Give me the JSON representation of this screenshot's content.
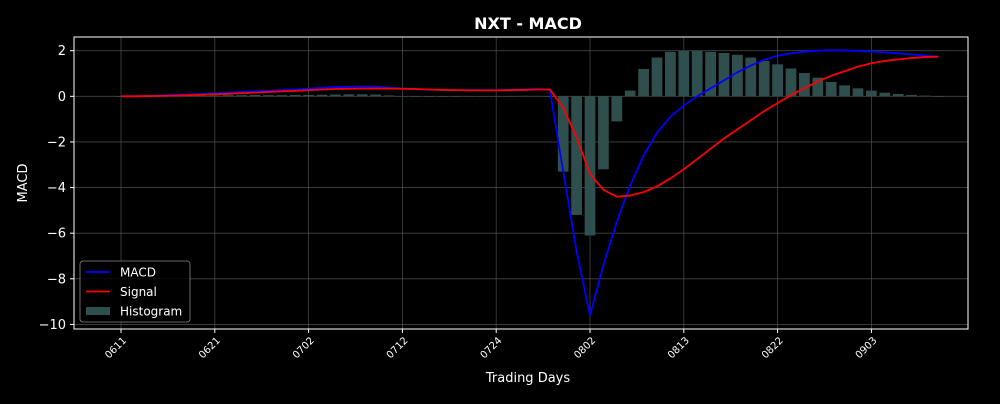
{
  "chart_data": {
    "type": "line",
    "title": "NXT - MACD",
    "xlabel": "Trading Days",
    "ylabel": "MACD",
    "ylim": [
      -10.2,
      2.6
    ],
    "yticks": [
      2,
      0,
      -2,
      -4,
      -6,
      -8,
      -10
    ],
    "ytick_labels": [
      "2",
      "0",
      "−2",
      "−4",
      "−6",
      "−8",
      "−10"
    ],
    "xticks": [
      {
        "label": "0611",
        "index": 0
      },
      {
        "label": "0621",
        "index": 7
      },
      {
        "label": "0702",
        "index": 14
      },
      {
        "label": "0712",
        "index": 21
      },
      {
        "label": "0724",
        "index": 28
      },
      {
        "label": "0802",
        "index": 35
      },
      {
        "label": "0813",
        "index": 42
      },
      {
        "label": "0822",
        "index": 49
      },
      {
        "label": "0903",
        "index": 56
      }
    ],
    "x": [
      0,
      1,
      2,
      3,
      4,
      5,
      6,
      7,
      8,
      9,
      10,
      11,
      12,
      13,
      14,
      15,
      16,
      17,
      18,
      19,
      20,
      21,
      22,
      23,
      24,
      25,
      26,
      27,
      28,
      29,
      30,
      31,
      32,
      33,
      34,
      35,
      36,
      37,
      38,
      39,
      40,
      41,
      42,
      43,
      44,
      45,
      46,
      47,
      48,
      49,
      50,
      51,
      52,
      53,
      54,
      55,
      56,
      57,
      58,
      59,
      60,
      61
    ],
    "grid": true,
    "legend_position": "lower-left",
    "colors": {
      "background": "#000000",
      "axes": "#ffffff",
      "grid": "#555555",
      "macd": "#0000ff",
      "signal": "#ff0000",
      "histogram": "#2f4f4f"
    },
    "series": [
      {
        "name": "MACD",
        "kind": "line",
        "values": [
          0.0,
          0.01,
          0.02,
          0.04,
          0.06,
          0.08,
          0.1,
          0.13,
          0.16,
          0.19,
          0.22,
          0.24,
          0.27,
          0.3,
          0.33,
          0.37,
          0.4,
          0.42,
          0.43,
          0.42,
          0.38,
          0.34,
          0.31,
          0.29,
          0.28,
          0.27,
          0.27,
          0.27,
          0.27,
          0.28,
          0.3,
          0.32,
          0.3,
          -3.3,
          -6.8,
          -9.6,
          -7.4,
          -5.5,
          -3.9,
          -2.6,
          -1.6,
          -0.9,
          -0.4,
          0.0,
          0.35,
          0.7,
          1.05,
          1.35,
          1.6,
          1.78,
          1.88,
          1.95,
          2.0,
          2.02,
          2.01,
          1.99,
          1.96,
          1.92,
          1.88,
          1.84,
          1.79,
          1.72
        ]
      },
      {
        "name": "Signal",
        "kind": "line",
        "values": [
          0.0,
          0.0,
          0.01,
          0.02,
          0.03,
          0.05,
          0.07,
          0.09,
          0.11,
          0.14,
          0.16,
          0.19,
          0.22,
          0.24,
          0.27,
          0.3,
          0.32,
          0.33,
          0.34,
          0.34,
          0.34,
          0.33,
          0.32,
          0.3,
          0.28,
          0.27,
          0.26,
          0.26,
          0.26,
          0.27,
          0.28,
          0.3,
          0.3,
          -0.5,
          -1.8,
          -3.4,
          -4.1,
          -4.4,
          -4.35,
          -4.2,
          -3.95,
          -3.6,
          -3.2,
          -2.75,
          -2.3,
          -1.85,
          -1.45,
          -1.05,
          -0.65,
          -0.3,
          0.05,
          0.35,
          0.65,
          0.9,
          1.1,
          1.3,
          1.45,
          1.55,
          1.62,
          1.68,
          1.72,
          1.74
        ]
      },
      {
        "name": "Histogram",
        "kind": "bar",
        "values": [
          0.0,
          0.01,
          0.01,
          0.02,
          0.03,
          0.03,
          0.03,
          0.04,
          0.05,
          0.05,
          0.06,
          0.05,
          0.05,
          0.06,
          0.06,
          0.07,
          0.08,
          0.09,
          0.09,
          0.08,
          0.04,
          0.01,
          -0.01,
          -0.01,
          0.0,
          0.0,
          0.01,
          0.01,
          0.01,
          0.01,
          0.02,
          0.02,
          0.0,
          -3.3,
          -5.2,
          -6.1,
          -3.2,
          -1.1,
          0.25,
          1.2,
          1.7,
          1.95,
          2.0,
          2.0,
          1.95,
          1.9,
          1.82,
          1.7,
          1.55,
          1.4,
          1.22,
          1.02,
          0.82,
          0.63,
          0.48,
          0.35,
          0.25,
          0.16,
          0.1,
          0.06,
          0.03,
          -0.02
        ]
      }
    ]
  }
}
